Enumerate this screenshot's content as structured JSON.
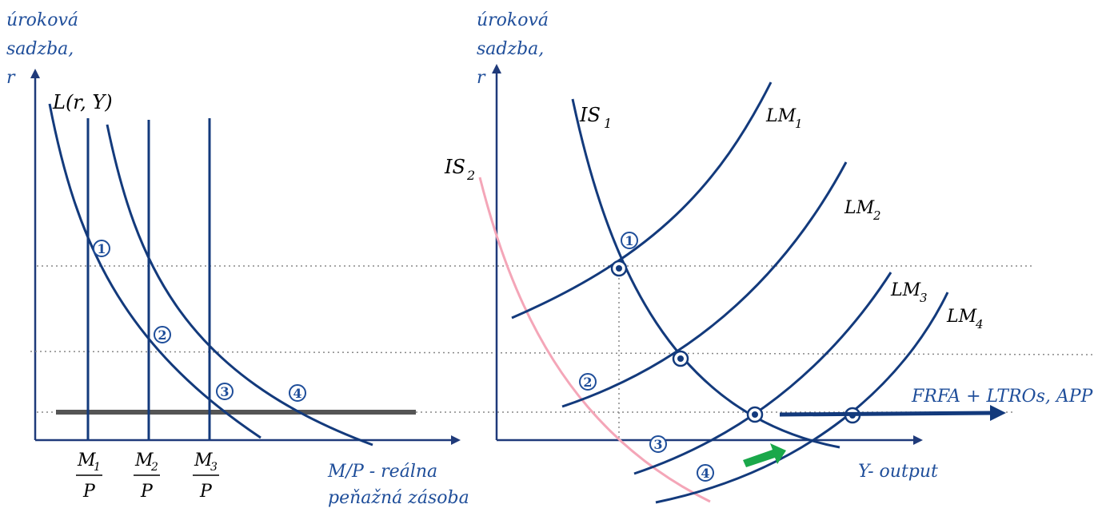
{
  "left_panel": {
    "y_label": [
      "úroková",
      "sadzba,",
      "r"
    ],
    "demand_label": "L(r, Y)",
    "x_label": [
      "M/P - reálna",
      "peňažná zásoba"
    ],
    "supply_labels": [
      {
        "num": "M",
        "sub": "1",
        "den": "P"
      },
      {
        "num": "M",
        "sub": "2",
        "den": "P"
      },
      {
        "num": "M",
        "sub": "3",
        "den": "P"
      }
    ],
    "points": [
      "1",
      "2",
      "3",
      "4"
    ]
  },
  "right_panel": {
    "y_label": [
      "úroková",
      "sadzba,",
      "r"
    ],
    "x_label": "Y- output",
    "is_labels": [
      {
        "name": "IS",
        "sub": "1"
      },
      {
        "name": "IS",
        "sub": "2"
      }
    ],
    "lm_labels": [
      {
        "name": "LM",
        "sub": "1"
      },
      {
        "name": "LM",
        "sub": "2"
      },
      {
        "name": "LM",
        "sub": "3"
      },
      {
        "name": "LM",
        "sub": "4"
      }
    ],
    "points": [
      "1",
      "2",
      "3",
      "4"
    ],
    "policy_label": "FRFA + LTROs, APP"
  },
  "colors": {
    "curve": "#133a7c",
    "text": "#1f4e9a",
    "is2": "#f4a6b8",
    "green_arrow": "#1aa84a",
    "floor": "#555555",
    "guide": "#888888"
  }
}
